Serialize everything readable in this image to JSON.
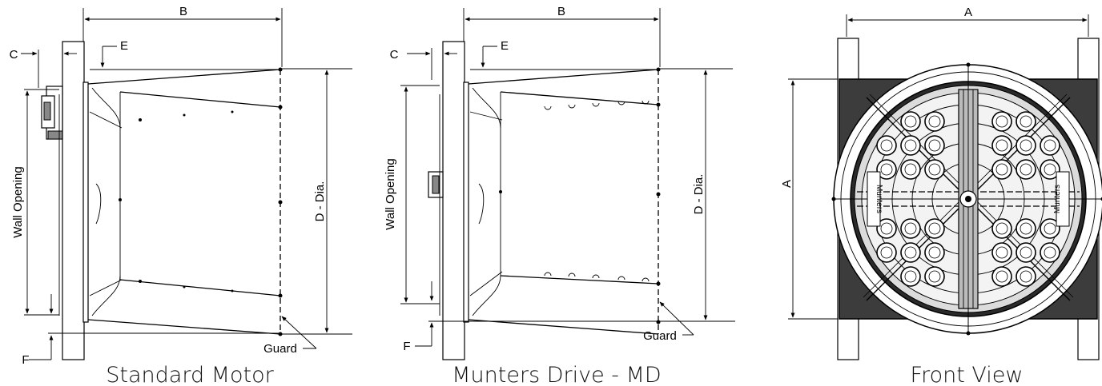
{
  "views": [
    {
      "caption": "Standard Motor",
      "labels": {
        "b": "B",
        "c": "C",
        "e": "E",
        "f": "F",
        "wall_opening": "Wall Opening",
        "d_dia": "D - Dia.",
        "guard": "Guard"
      }
    },
    {
      "caption": "Munters Drive - MD",
      "labels": {
        "b": "B",
        "c": "C",
        "e": "E",
        "f": "F",
        "wall_opening": "Wall Opening",
        "d_dia": "D - Dia.",
        "guard": "Guard"
      }
    },
    {
      "caption": "Front View",
      "labels": {
        "a_top": "A",
        "a_left": "A"
      },
      "logo_text": "Munters"
    }
  ]
}
